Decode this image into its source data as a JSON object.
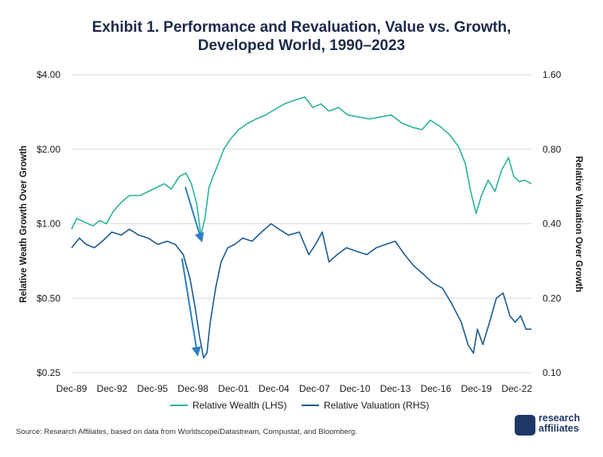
{
  "chart_data": {
    "type": "line",
    "title_line1": "Exhibit 1. Performance and Revaluation, Value vs. Growth,",
    "title_line2": "Developed World, 1990–2023",
    "ylabel_left": "Relative Weath Growth Over Growth",
    "ylabel_right": "Relative Valuation Over Growth",
    "left_axis": {
      "scale": "log",
      "min": 0.25,
      "max": 4.0,
      "ticks": [
        4.0,
        2.0,
        1.0,
        0.5,
        0.25
      ],
      "tick_labels": [
        "$4.00",
        "$2.00",
        "$1.00",
        "$0.50",
        "$0.25"
      ]
    },
    "right_axis": {
      "scale": "log",
      "min": 0.1,
      "max": 1.6,
      "ticks": [
        1.6,
        0.8,
        0.4,
        0.2,
        0.1
      ],
      "tick_labels": [
        "1.60",
        "0.80",
        "0.40",
        "0.20",
        "0.10"
      ]
    },
    "x_axis": {
      "min": 1989.92,
      "max": 2024.0,
      "ticks": [
        1989.92,
        1992.92,
        1995.92,
        1998.92,
        2001.92,
        2004.92,
        2007.92,
        2010.92,
        2013.92,
        2016.92,
        2019.92,
        2022.92
      ],
      "tick_labels": [
        "Dec-89",
        "Dec-92",
        "Dec-95",
        "Dec-98",
        "Dec-01",
        "Dec-04",
        "Dec-07",
        "Dec-10",
        "Dec-13",
        "Dec-16",
        "Dec-19",
        "Dec-22"
      ]
    },
    "series": [
      {
        "name": "Relative Wealth (LHS)",
        "axis": "left",
        "color": "#2bb39a",
        "x": [
          1989.92,
          1990.3,
          1990.8,
          1991.5,
          1992.0,
          1992.5,
          1993.0,
          1993.6,
          1994.2,
          1995.0,
          1995.6,
          1996.2,
          1996.8,
          1997.3,
          1997.9,
          1998.4,
          1998.8,
          1999.2,
          1999.5,
          1999.8,
          2000.1,
          2000.4,
          2000.8,
          2001.2,
          2001.7,
          2002.3,
          2003.0,
          2003.6,
          2004.3,
          2005.0,
          2005.7,
          2006.4,
          2007.2,
          2007.8,
          2008.4,
          2009.0,
          2009.7,
          2010.4,
          2011.2,
          2012.0,
          2012.8,
          2013.6,
          2014.4,
          2015.2,
          2015.9,
          2016.5,
          2017.2,
          2017.9,
          2018.6,
          2019.1,
          2019.5,
          2019.9,
          2020.3,
          2020.8,
          2021.3,
          2021.8,
          2022.3,
          2022.7,
          2023.1,
          2023.5,
          2024.0
        ],
        "values": [
          0.95,
          1.05,
          1.02,
          0.98,
          1.03,
          1.0,
          1.12,
          1.22,
          1.3,
          1.3,
          1.35,
          1.4,
          1.45,
          1.38,
          1.55,
          1.6,
          1.45,
          1.2,
          0.9,
          1.05,
          1.4,
          1.55,
          1.75,
          2.0,
          2.2,
          2.4,
          2.55,
          2.65,
          2.75,
          2.9,
          3.05,
          3.15,
          3.25,
          2.95,
          3.05,
          2.85,
          2.95,
          2.75,
          2.7,
          2.65,
          2.7,
          2.75,
          2.55,
          2.45,
          2.4,
          2.62,
          2.48,
          2.3,
          2.05,
          1.75,
          1.35,
          1.1,
          1.3,
          1.5,
          1.35,
          1.65,
          1.85,
          1.55,
          1.48,
          1.5,
          1.45
        ]
      },
      {
        "name": "Relative Valuation (RHS)",
        "axis": "right",
        "color": "#1d5a91",
        "x": [
          1989.92,
          1990.5,
          1991.0,
          1991.6,
          1992.2,
          1992.9,
          1993.6,
          1994.2,
          1994.9,
          1995.6,
          1996.3,
          1997.0,
          1997.6,
          1998.2,
          1998.7,
          1999.1,
          1999.4,
          1999.7,
          1999.95,
          2000.2,
          2000.6,
          2001.0,
          2001.5,
          2002.0,
          2002.6,
          2003.3,
          2004.0,
          2004.7,
          2005.3,
          2006.0,
          2006.8,
          2007.5,
          2008.0,
          2008.5,
          2009.0,
          2009.6,
          2010.3,
          2011.0,
          2011.8,
          2012.5,
          2013.2,
          2013.9,
          2014.6,
          2015.3,
          2016.0,
          2016.7,
          2017.4,
          2018.1,
          2018.8,
          2019.3,
          2019.7,
          2020.0,
          2020.4,
          2020.9,
          2021.4,
          2021.9,
          2022.4,
          2022.8,
          2023.2,
          2023.6,
          2024.0
        ],
        "values": [
          0.32,
          0.35,
          0.33,
          0.32,
          0.34,
          0.37,
          0.36,
          0.38,
          0.36,
          0.35,
          0.33,
          0.34,
          0.33,
          0.3,
          0.24,
          0.18,
          0.14,
          0.115,
          0.12,
          0.16,
          0.22,
          0.28,
          0.32,
          0.33,
          0.35,
          0.34,
          0.37,
          0.4,
          0.38,
          0.36,
          0.37,
          0.3,
          0.33,
          0.37,
          0.28,
          0.3,
          0.32,
          0.31,
          0.3,
          0.32,
          0.33,
          0.34,
          0.3,
          0.27,
          0.25,
          0.23,
          0.22,
          0.19,
          0.16,
          0.13,
          0.12,
          0.15,
          0.13,
          0.16,
          0.2,
          0.21,
          0.17,
          0.16,
          0.17,
          0.15,
          0.15
        ]
      }
    ],
    "annotations": [
      "arrow toward Relative Wealth trough, late 1999",
      "arrow toward Relative Valuation trough, late 1999"
    ],
    "legend_position": "bottom-center",
    "grid": true
  },
  "source": "Source: Research Affiliates, based on data from Worldscope/Datastream, Compustat, and Bloomberg.",
  "logo": {
    "line1": "research",
    "line2": "affiliates"
  }
}
